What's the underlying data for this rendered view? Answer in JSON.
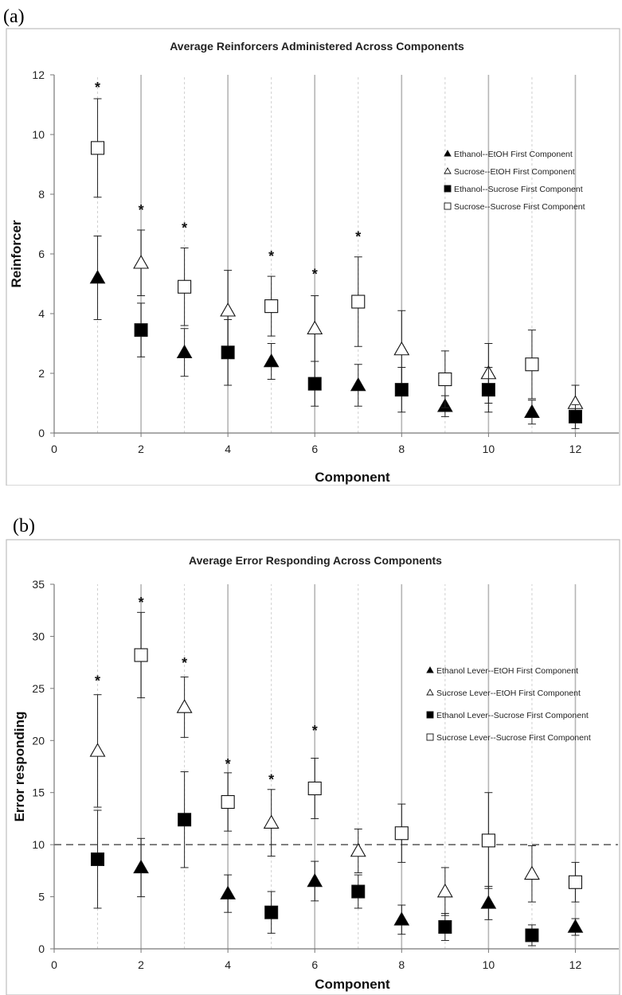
{
  "panels": [
    {
      "label": "(a)"
    },
    {
      "label": "(b)"
    }
  ],
  "chart_data": [
    {
      "type": "scatter",
      "title": "Average Reinforcers Administered Across Components",
      "xlabel": "Component",
      "ylabel": "Reinforcer",
      "xlim": [
        0,
        13
      ],
      "ylim": [
        0,
        12
      ],
      "xticks": [
        0,
        2,
        4,
        6,
        8,
        10,
        12
      ],
      "yticks": [
        0,
        2,
        4,
        6,
        8,
        10,
        12
      ],
      "grid": "vertical lines at each component",
      "legend_position": "right",
      "series": [
        {
          "name": "Ethanol--EtOH First Component",
          "marker": "triangle-filled",
          "points": [
            {
              "x": 1,
              "y": 5.2,
              "err": 1.4
            },
            {
              "x": 3,
              "y": 2.7,
              "err": 0.8
            },
            {
              "x": 5,
              "y": 2.4,
              "err": 0.6
            },
            {
              "x": 7,
              "y": 1.6,
              "err": 0.7
            },
            {
              "x": 9,
              "y": 0.9,
              "err": 0.35
            },
            {
              "x": 11,
              "y": 0.7,
              "err": 0.4
            }
          ]
        },
        {
          "name": "Sucrose--EtOH First Component",
          "marker": "triangle-open",
          "points": [
            {
              "x": 2,
              "y": 5.7,
              "err": 1.1
            },
            {
              "x": 4,
              "y": 4.1,
              "err": 1.35
            },
            {
              "x": 6,
              "y": 3.5,
              "err": 1.1
            },
            {
              "x": 8,
              "y": 2.8,
              "err": 1.3
            },
            {
              "x": 10,
              "y": 2.0,
              "err": 1.0
            },
            {
              "x": 12,
              "y": 1.0,
              "err": 0.6
            }
          ]
        },
        {
          "name": "Ethanol--Sucrose First Component",
          "marker": "square-filled",
          "points": [
            {
              "x": 2,
              "y": 3.45,
              "err": 0.9
            },
            {
              "x": 4,
              "y": 2.7,
              "err": 1.1
            },
            {
              "x": 6,
              "y": 1.65,
              "err": 0.75
            },
            {
              "x": 8,
              "y": 1.45,
              "err": 0.75
            },
            {
              "x": 10,
              "y": 1.45,
              "err": 0.75
            },
            {
              "x": 12,
              "y": 0.55,
              "err": 0.4
            }
          ]
        },
        {
          "name": "Sucrose--Sucrose First Component",
          "marker": "square-open",
          "points": [
            {
              "x": 1,
              "y": 9.55,
              "err": 1.65
            },
            {
              "x": 3,
              "y": 4.9,
              "err": 1.3
            },
            {
              "x": 5,
              "y": 4.25,
              "err": 1.0
            },
            {
              "x": 7,
              "y": 4.4,
              "err": 1.5
            },
            {
              "x": 9,
              "y": 1.8,
              "err": 0.95
            },
            {
              "x": 11,
              "y": 2.3,
              "err": 1.15
            }
          ]
        }
      ],
      "significance": [
        {
          "x": 1,
          "y": 11.6,
          "text": "*"
        },
        {
          "x": 2,
          "y": 7.5,
          "text": "*"
        },
        {
          "x": 3,
          "y": 6.9,
          "text": "*"
        },
        {
          "x": 5,
          "y": 5.95,
          "text": "*"
        },
        {
          "x": 6,
          "y": 5.35,
          "text": "*"
        },
        {
          "x": 7,
          "y": 6.6,
          "text": "*"
        }
      ]
    },
    {
      "type": "scatter",
      "title": "Average Error Responding Across Components",
      "xlabel": "Component",
      "ylabel": "Error responding",
      "xlim": [
        0,
        13
      ],
      "ylim": [
        0,
        35
      ],
      "xticks": [
        0,
        2,
        4,
        6,
        8,
        10,
        12
      ],
      "yticks": [
        0,
        5,
        10,
        15,
        20,
        25,
        30,
        35
      ],
      "grid": "vertical lines at each component",
      "legend_position": "right",
      "reference_line": {
        "y": 10,
        "style": "dashed"
      },
      "series": [
        {
          "name": "Ethanol Lever--EtOH First Component",
          "marker": "triangle-filled",
          "points": [
            {
              "x": 2,
              "y": 7.8,
              "err": 2.8
            },
            {
              "x": 4,
              "y": 5.3,
              "err": 1.8
            },
            {
              "x": 6,
              "y": 6.5,
              "err": 1.9
            },
            {
              "x": 8,
              "y": 2.8,
              "err": 1.4
            },
            {
              "x": 10,
              "y": 4.4,
              "err": 1.6
            },
            {
              "x": 12,
              "y": 2.1,
              "err": 0.8
            }
          ]
        },
        {
          "name": "Sucrose Lever--EtOH First Component",
          "marker": "triangle-open",
          "points": [
            {
              "x": 1,
              "y": 19.0,
              "err": 5.4
            },
            {
              "x": 3,
              "y": 23.2,
              "err": 2.9
            },
            {
              "x": 5,
              "y": 12.1,
              "err": 3.2
            },
            {
              "x": 7,
              "y": 9.4,
              "err": 2.1
            },
            {
              "x": 9,
              "y": 5.5,
              "err": 2.3
            },
            {
              "x": 11,
              "y": 7.2,
              "err": 2.7
            }
          ]
        },
        {
          "name": "Ethanol Lever--Sucrose First Component",
          "marker": "square-filled",
          "points": [
            {
              "x": 1,
              "y": 8.6,
              "err": 4.7
            },
            {
              "x": 3,
              "y": 12.4,
              "err": 4.6
            },
            {
              "x": 5,
              "y": 3.5,
              "err": 2.0
            },
            {
              "x": 7,
              "y": 5.5,
              "err": 1.6
            },
            {
              "x": 9,
              "y": 2.1,
              "err": 1.3
            },
            {
              "x": 11,
              "y": 1.3,
              "err": 1.0
            }
          ]
        },
        {
          "name": "Sucrose Lever--Sucrose First Component",
          "marker": "square-open",
          "points": [
            {
              "x": 2,
              "y": 28.2,
              "err": 4.1
            },
            {
              "x": 4,
              "y": 14.1,
              "err": 2.8
            },
            {
              "x": 6,
              "y": 15.4,
              "err": 2.9
            },
            {
              "x": 8,
              "y": 11.1,
              "err": 2.8
            },
            {
              "x": 10,
              "y": 10.4,
              "err": 4.6
            },
            {
              "x": 12,
              "y": 6.4,
              "err": 1.9
            }
          ]
        }
      ],
      "significance": [
        {
          "x": 1,
          "y": 25.8,
          "text": "*"
        },
        {
          "x": 2,
          "y": 33.3,
          "text": "*"
        },
        {
          "x": 3,
          "y": 27.5,
          "text": "*"
        },
        {
          "x": 4,
          "y": 17.8,
          "text": "*"
        },
        {
          "x": 5,
          "y": 16.3,
          "text": "*"
        },
        {
          "x": 6,
          "y": 21.0,
          "text": "*"
        }
      ]
    }
  ]
}
